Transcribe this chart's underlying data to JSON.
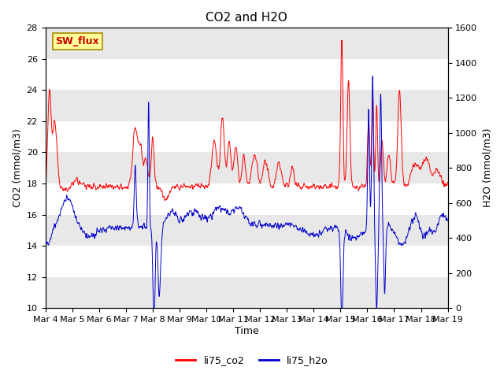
{
  "title": "CO2 and H2O",
  "xlabel": "Time",
  "ylabel_left": "CO2 (mmol/m3)",
  "ylabel_right": "H2O (mmol/m3)",
  "ylim_left": [
    10,
    28
  ],
  "ylim_right": [
    0,
    1600
  ],
  "yticks_left": [
    10,
    12,
    14,
    16,
    18,
    20,
    22,
    24,
    26,
    28
  ],
  "yticks_right": [
    0,
    200,
    400,
    600,
    800,
    1000,
    1200,
    1400,
    1600
  ],
  "color_co2": "#FF0000",
  "color_h2o": "#0000CC",
  "legend_co2": "li75_co2",
  "legend_h2o": "li75_h2o",
  "annotation_text": "SW_flux",
  "background_color": "#FFFFFF",
  "band_color": "#E8E8E8",
  "title_fontsize": 11,
  "axis_fontsize": 9,
  "tick_fontsize": 8
}
